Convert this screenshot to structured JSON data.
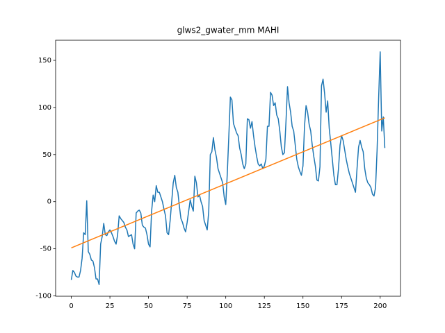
{
  "chart_data": {
    "type": "line",
    "title": "glws2_gwater_mm MAHI",
    "series": [
      {
        "color": "#1f77b4",
        "x": [
          0,
          1,
          2,
          3,
          4,
          5,
          6,
          7,
          8,
          9,
          10,
          11,
          12,
          13,
          14,
          15,
          16,
          17,
          18,
          19,
          20,
          21,
          22,
          23,
          24,
          25,
          26,
          27,
          28,
          29,
          30,
          31,
          32,
          33,
          34,
          35,
          36,
          37,
          38,
          39,
          40,
          41,
          42,
          43,
          44,
          45,
          46,
          47,
          48,
          49,
          50,
          51,
          52,
          53,
          54,
          55,
          56,
          57,
          58,
          59,
          60,
          61,
          62,
          63,
          64,
          65,
          66,
          67,
          68,
          69,
          70,
          71,
          72,
          73,
          74,
          75,
          76,
          77,
          78,
          79,
          80,
          81,
          82,
          83,
          84,
          85,
          86,
          87,
          88,
          89,
          90,
          91,
          92,
          93,
          94,
          95,
          96,
          97,
          98,
          99,
          100,
          101,
          102,
          103,
          104,
          105,
          106,
          107,
          108,
          109,
          110,
          111,
          112,
          113,
          114,
          115,
          116,
          117,
          118,
          119,
          120,
          121,
          122,
          123,
          124,
          125,
          126,
          127,
          128,
          129,
          130,
          131,
          132,
          133,
          134,
          135,
          136,
          137,
          138,
          139,
          140,
          141,
          142,
          143,
          144,
          145,
          146,
          147,
          148,
          149,
          150,
          151,
          152,
          153,
          154,
          155,
          156,
          157,
          158,
          159,
          160,
          161,
          162,
          163,
          164,
          165,
          166,
          167,
          168,
          169,
          170,
          171,
          172,
          173,
          174,
          175,
          176,
          177,
          178,
          179,
          180,
          181,
          182,
          183,
          184,
          185,
          186,
          187,
          188,
          189,
          190,
          191,
          192,
          193,
          194,
          195,
          196,
          197,
          198,
          199,
          200,
          201,
          202,
          203
        ],
        "values": [
          -83,
          -73,
          -75,
          -79,
          -80,
          -80,
          -73,
          -60,
          -33,
          -35,
          1,
          -53,
          -56,
          -62,
          -63,
          -70,
          -82,
          -82,
          -88,
          -45,
          -37,
          -23,
          -35,
          -36,
          -32,
          -30,
          -33,
          -37,
          -42,
          -45,
          -35,
          -15,
          -18,
          -20,
          -22,
          -27,
          -30,
          -37,
          -36,
          -35,
          -45,
          -50,
          -12,
          -10,
          -9,
          -12,
          -25,
          -27,
          -28,
          -35,
          -45,
          -48,
          -10,
          7,
          0,
          17,
          10,
          10,
          5,
          0,
          -8,
          -15,
          -33,
          -35,
          -20,
          0,
          20,
          28,
          15,
          10,
          -5,
          -18,
          -22,
          -28,
          -32,
          -22,
          -10,
          2,
          -5,
          -10,
          27,
          20,
          5,
          7,
          0,
          -5,
          -20,
          -25,
          -30,
          -10,
          50,
          53,
          68,
          55,
          47,
          35,
          30,
          25,
          20,
          5,
          -3,
          30,
          70,
          111,
          108,
          83,
          78,
          73,
          70,
          57,
          50,
          40,
          35,
          40,
          88,
          87,
          78,
          85,
          70,
          58,
          48,
          40,
          38,
          40,
          35,
          38,
          45,
          80,
          80,
          116,
          113,
          102,
          105,
          92,
          88,
          75,
          58,
          50,
          52,
          85,
          122,
          105,
          95,
          80,
          75,
          60,
          45,
          37,
          32,
          28,
          38,
          80,
          102,
          95,
          82,
          75,
          60,
          48,
          38,
          23,
          22,
          37,
          123,
          130,
          115,
          95,
          107,
          78,
          62,
          45,
          28,
          18,
          18,
          35,
          60,
          70,
          65,
          55,
          45,
          37,
          30,
          25,
          20,
          15,
          10,
          35,
          58,
          65,
          58,
          53,
          35,
          25,
          20,
          18,
          15,
          8,
          6,
          15,
          55,
          110,
          159,
          75,
          90,
          57
        ]
      },
      {
        "color": "#ff7f0e",
        "x": [
          0,
          203
        ],
        "values": [
          -49,
          89
        ]
      }
    ],
    "xlim": [
      -10.15,
      213.15
    ],
    "xticks": [
      0,
      25,
      50,
      75,
      100,
      125,
      150,
      175,
      200
    ],
    "ylim": [
      -100.35,
      171.35
    ],
    "yticks": [
      -100,
      -50,
      0,
      50,
      100,
      150
    ]
  }
}
